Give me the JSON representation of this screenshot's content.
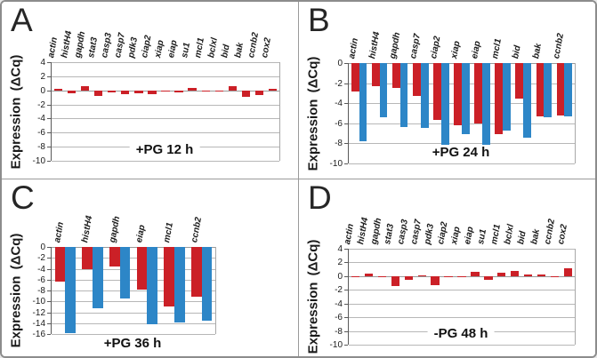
{
  "figure_colors": {
    "red_series": "#cb2027",
    "blue_series": "#2d86c7",
    "gridline": "#b7b7b7"
  },
  "chart_data": [
    {
      "type": "bar",
      "panel": "A",
      "title": "+PG 12 h",
      "ylabel": "Expression (ΔCq)",
      "ylim": [
        -10,
        4
      ],
      "ystep": 2,
      "grid": true,
      "legend": "none",
      "categories": [
        "actin",
        "histH4",
        "gapdh",
        "stat3",
        "casp3",
        "casp7",
        "pdk3",
        "ciap2",
        "xiap",
        "eiap",
        "su1",
        "mcl1",
        "bclxl",
        "bid",
        "bak",
        "ccnb2",
        "cox2"
      ],
      "series": [
        {
          "name": "red",
          "values": [
            0.2,
            -0.4,
            0.6,
            -0.8,
            -0.3,
            -0.6,
            -0.4,
            -0.5,
            -0.1,
            -0.3,
            0.3,
            -0.1,
            -0.2,
            0.6,
            -0.9,
            -0.7,
            0.2
          ]
        }
      ]
    },
    {
      "type": "bar",
      "panel": "B",
      "title": "+PG 24 h",
      "ylabel": "Expression (ΔCq)",
      "ylim": [
        -10,
        0
      ],
      "ystep": 2,
      "grid": true,
      "legend": "none",
      "categories": [
        "actin",
        "histH4",
        "gapdh",
        "casp7",
        "ciap2",
        "xiap",
        "eiap",
        "mcl1",
        "bid",
        "bak",
        "ccnb2"
      ],
      "series": [
        {
          "name": "red",
          "values": [
            -2.8,
            -2.3,
            -2.5,
            -3.3,
            -5.7,
            -6.2,
            -6.0,
            -7.1,
            -3.5,
            -5.3,
            -5.2
          ]
        },
        {
          "name": "blue",
          "values": [
            -7.8,
            -5.4,
            -6.4,
            -6.5,
            -8.2,
            -7.1,
            -8.1,
            -6.7,
            -7.4,
            -5.4,
            -5.3
          ]
        }
      ]
    },
    {
      "type": "bar",
      "panel": "C",
      "title": "+PG 36 h",
      "ylabel": "Expression (ΔCq)",
      "ylim": [
        -16,
        0
      ],
      "ystep": 2,
      "grid": true,
      "legend": "none",
      "categories": [
        "actin",
        "histH4",
        "gapdh",
        "eiap",
        "mcl1",
        "ccnb2"
      ],
      "series": [
        {
          "name": "red",
          "values": [
            -6.3,
            -4.0,
            -3.6,
            -7.9,
            -10.9,
            -9.1
          ]
        },
        {
          "name": "blue",
          "values": [
            -15.8,
            -11.2,
            -9.5,
            -14.2,
            -13.8,
            -13.6
          ]
        }
      ]
    },
    {
      "type": "bar",
      "panel": "D",
      "title": "-PG 48 h",
      "ylabel": "Expression (ΔCq)",
      "ylim": [
        -10,
        4
      ],
      "ystep": 2,
      "grid": true,
      "legend": "none",
      "categories": [
        "actin",
        "histH4",
        "gapdh",
        "stat3",
        "casp3",
        "casp7",
        "pdk3",
        "ciap2",
        "xiap",
        "eiap",
        "su1",
        "mcl1",
        "bclxl",
        "bid",
        "bak",
        "ccnb2",
        "cox2"
      ],
      "series": [
        {
          "name": "red",
          "values": [
            -0.2,
            0.4,
            -0.2,
            -1.5,
            -0.6,
            0.1,
            -1.3,
            -0.1,
            -0.05,
            0.6,
            -0.5,
            0.5,
            0.7,
            0.3,
            0.3,
            -0.05,
            1.1
          ]
        }
      ]
    }
  ]
}
